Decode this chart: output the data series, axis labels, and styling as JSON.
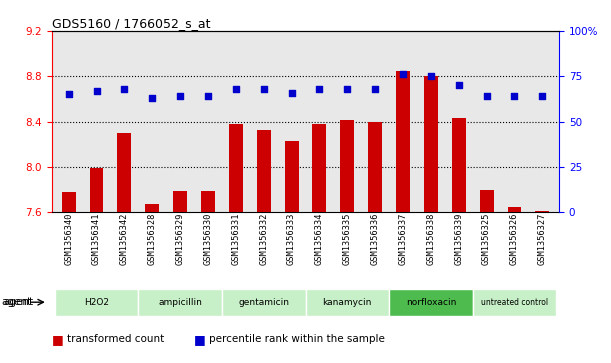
{
  "title": "GDS5160 / 1766052_s_at",
  "samples": [
    "GSM1356340",
    "GSM1356341",
    "GSM1356342",
    "GSM1356328",
    "GSM1356329",
    "GSM1356330",
    "GSM1356331",
    "GSM1356332",
    "GSM1356333",
    "GSM1356334",
    "GSM1356335",
    "GSM1356336",
    "GSM1356337",
    "GSM1356338",
    "GSM1356339",
    "GSM1356325",
    "GSM1356326",
    "GSM1356327"
  ],
  "transformed_count": [
    7.78,
    7.99,
    8.3,
    7.67,
    7.79,
    7.79,
    8.38,
    8.33,
    8.23,
    8.38,
    8.41,
    8.4,
    8.85,
    8.8,
    8.43,
    7.8,
    7.65,
    7.61
  ],
  "percentile_rank": [
    65,
    67,
    68,
    63,
    64,
    64,
    68,
    68,
    66,
    68,
    68,
    68,
    76,
    75,
    70,
    64,
    64,
    64
  ],
  "groups": [
    {
      "label": "H2O2",
      "start": 0,
      "end": 3,
      "color": "#c8f0c8"
    },
    {
      "label": "ampicillin",
      "start": 3,
      "end": 6,
      "color": "#c8f0c8"
    },
    {
      "label": "gentamicin",
      "start": 6,
      "end": 9,
      "color": "#c8f0c8"
    },
    {
      "label": "kanamycin",
      "start": 9,
      "end": 12,
      "color": "#c8f0c8"
    },
    {
      "label": "norfloxacin",
      "start": 12,
      "end": 15,
      "color": "#4dbb4d"
    },
    {
      "label": "untreated control",
      "start": 15,
      "end": 18,
      "color": "#c8f0c8"
    }
  ],
  "ylim_left": [
    7.6,
    9.2
  ],
  "ylim_right": [
    0,
    100
  ],
  "yticks_left": [
    7.6,
    8.0,
    8.4,
    8.8,
    9.2
  ],
  "yticks_right": [
    0,
    25,
    50,
    75,
    100
  ],
  "grid_lines": [
    8.0,
    8.4,
    8.8
  ],
  "bar_color": "#cc0000",
  "dot_color": "#0000cc",
  "bar_width": 0.5,
  "plot_bg": "#e8e8e8",
  "legend_items": [
    {
      "label": "transformed count",
      "color": "#cc0000"
    },
    {
      "label": "percentile rank within the sample",
      "color": "#0000cc"
    }
  ],
  "agent_label": "agent"
}
